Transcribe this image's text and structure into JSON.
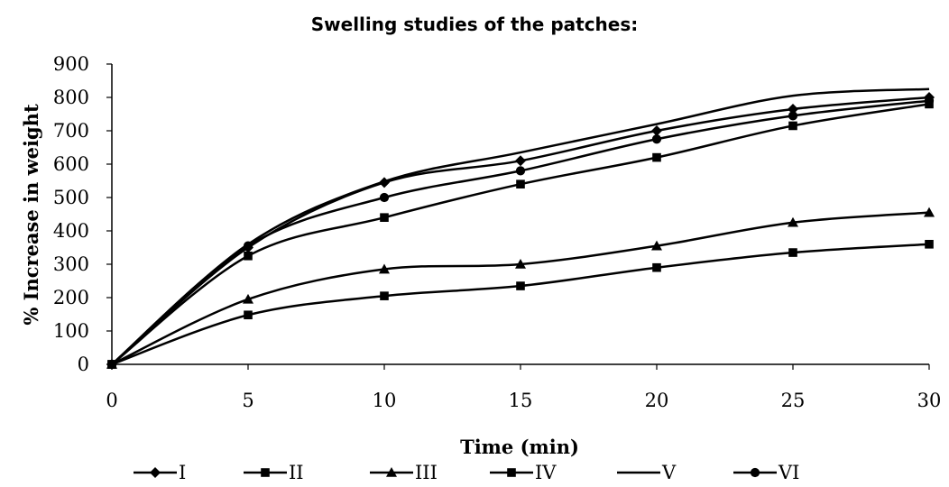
{
  "chart_data": {
    "type": "line",
    "title": "Swelling studies of the patches:",
    "xlabel": "Time (min)",
    "ylabel": "% Increase in weight",
    "xlim": [
      0,
      30
    ],
    "ylim": [
      0,
      900
    ],
    "x": [
      0,
      5,
      10,
      15,
      20,
      25,
      30
    ],
    "x_ticks": [
      "0",
      "5",
      "10",
      "15",
      "20",
      "25",
      "30"
    ],
    "y_ticks": [
      "0",
      "100",
      "200",
      "300",
      "400",
      "500",
      "600",
      "700",
      "800",
      "900"
    ],
    "grid": false,
    "legend_position": "bottom",
    "series": [
      {
        "name": "I",
        "marker": "diamond",
        "values": [
          0,
          350,
          545,
          610,
          700,
          765,
          800
        ]
      },
      {
        "name": "II",
        "marker": "square",
        "values": [
          0,
          325,
          440,
          540,
          620,
          715,
          780
        ]
      },
      {
        "name": "III",
        "marker": "triangle",
        "values": [
          0,
          195,
          285,
          300,
          355,
          425,
          455
        ]
      },
      {
        "name": "IV",
        "marker": "square",
        "values": [
          0,
          148,
          205,
          235,
          290,
          335,
          360
        ]
      },
      {
        "name": "V",
        "marker": "none",
        "values": [
          0,
          360,
          548,
          635,
          720,
          805,
          825
        ]
      },
      {
        "name": "VI",
        "marker": "circle",
        "values": [
          0,
          355,
          500,
          580,
          675,
          745,
          790
        ]
      }
    ],
    "line_color": "#000000"
  }
}
